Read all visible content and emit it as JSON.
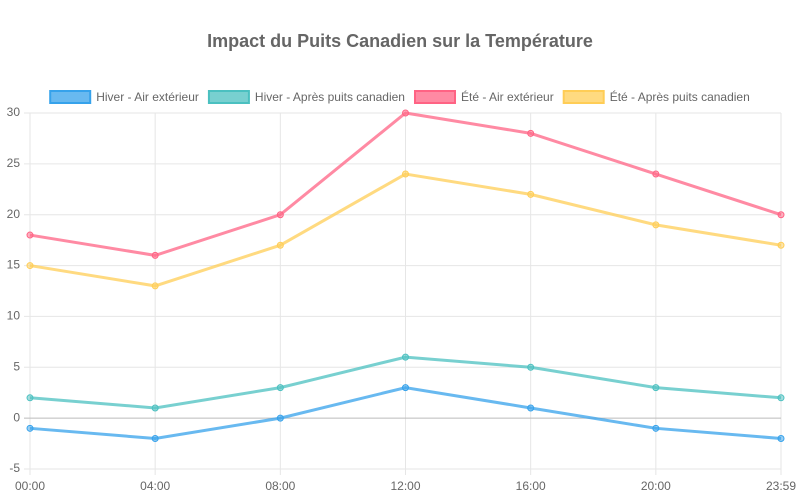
{
  "chart_data": {
    "type": "line",
    "title": "Impact du Puits Canadien sur la Température",
    "categories": [
      "00:00",
      "04:00",
      "08:00",
      "12:00",
      "16:00",
      "20:00",
      "23:59"
    ],
    "series": [
      {
        "name": "Hiver - Air extérieur",
        "color": "#36a2eb",
        "values": [
          -1,
          -2,
          0,
          3,
          1,
          -1,
          -2
        ]
      },
      {
        "name": "Hiver - Après puits canadien",
        "color": "#4bc0c0",
        "values": [
          2,
          1,
          3,
          6,
          5,
          3,
          2
        ]
      },
      {
        "name": "Été - Air extérieur",
        "color": "#ff6384",
        "values": [
          18,
          16,
          20,
          30,
          28,
          24,
          20
        ]
      },
      {
        "name": "Été - Après puits canadien",
        "color": "#ffcd56",
        "values": [
          15,
          13,
          17,
          24,
          22,
          19,
          17
        ]
      }
    ],
    "ylim": [
      -5,
      30
    ],
    "yticks": [
      -5,
      0,
      5,
      10,
      15,
      20,
      25,
      30
    ],
    "grid": true,
    "legend": "top"
  }
}
